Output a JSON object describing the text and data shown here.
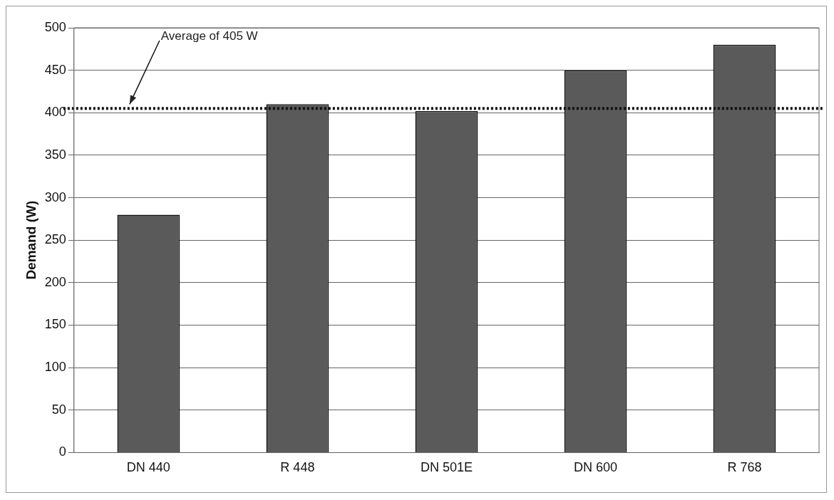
{
  "chart_data": {
    "type": "bar",
    "ylabel": "Demand (W)",
    "categories": [
      "DN 440",
      "R 448",
      "DN 501E",
      "DN 600",
      "R 768"
    ],
    "values": [
      280,
      410,
      402,
      450,
      480
    ],
    "color": "#5a5a5a",
    "ylim": [
      0,
      500
    ],
    "yticks": [
      0,
      50,
      100,
      150,
      200,
      250,
      300,
      350,
      400,
      450,
      500
    ],
    "grid": "y",
    "ref_lines": [
      {
        "axis": "y",
        "value": 405,
        "label": "Average of 405 W",
        "color": "#111111",
        "line_style": "dotted"
      }
    ]
  }
}
